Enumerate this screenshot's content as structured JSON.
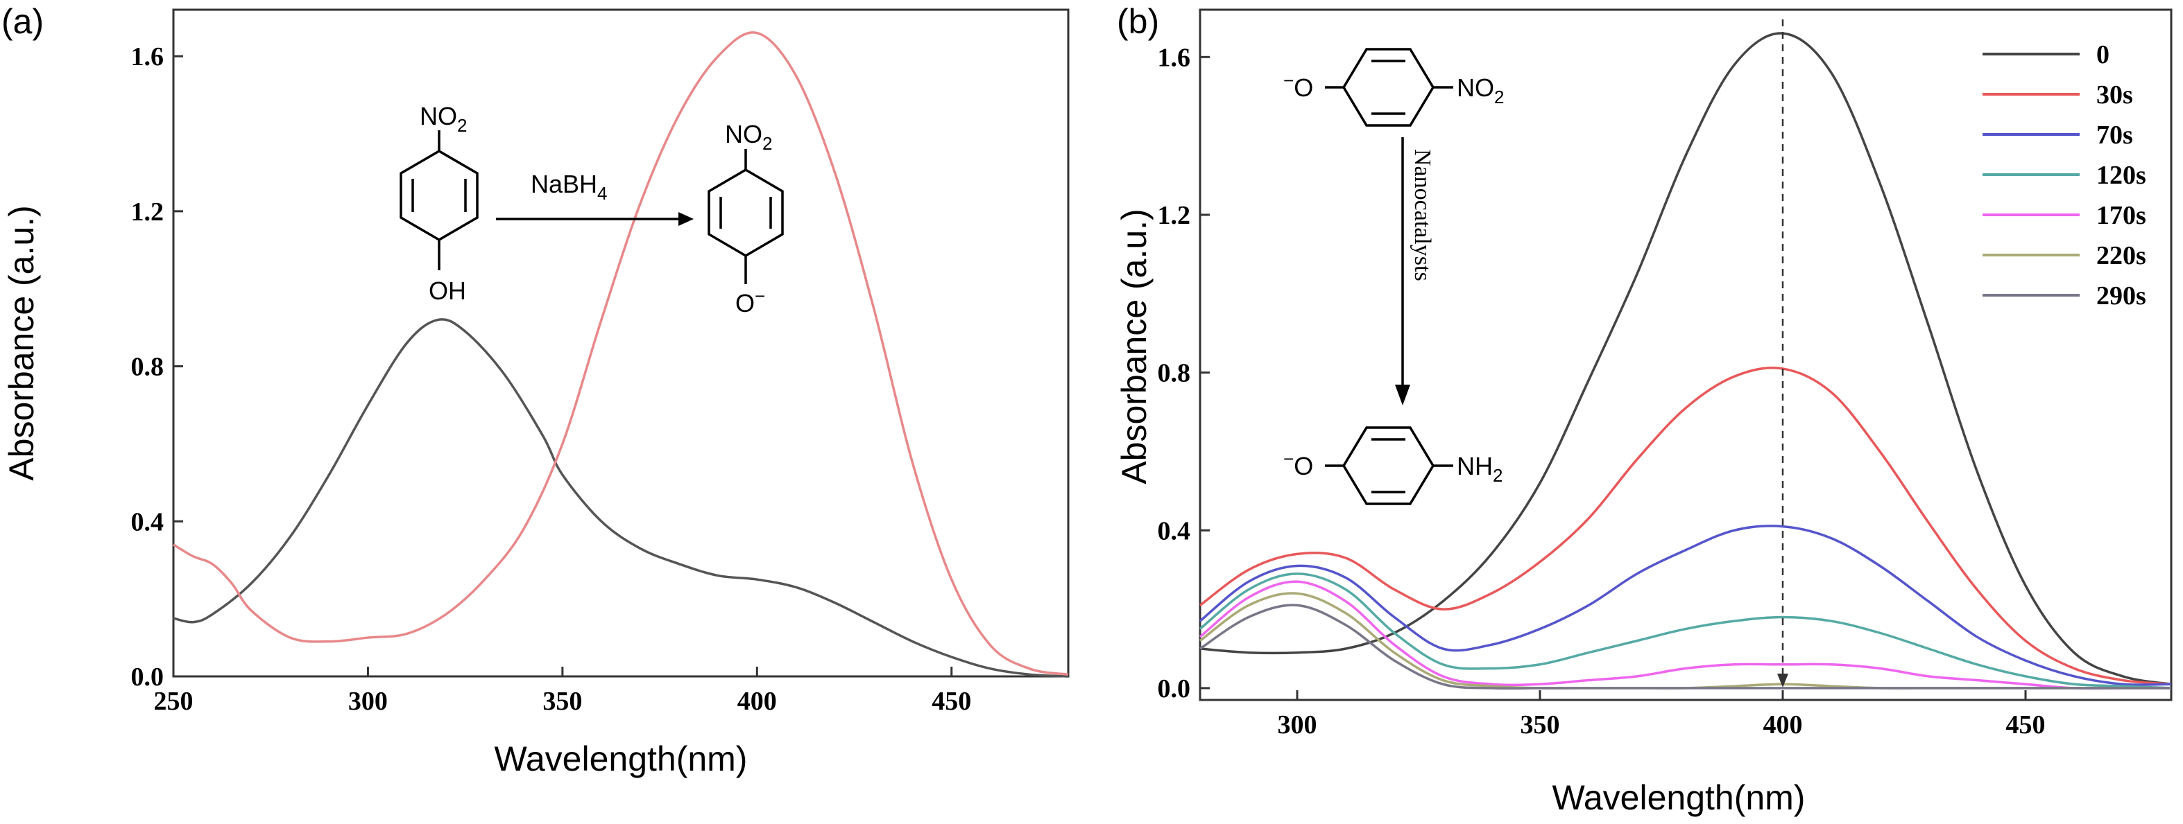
{
  "chart_data": [
    {
      "type": "line",
      "panel_label": "(a)",
      "xlabel": "Wavelength(nm)",
      "ylabel": "Absorbance (a.u.)",
      "xlim": [
        250,
        480
      ],
      "ylim": [
        0,
        1.72
      ],
      "xticks": [
        "250",
        "300",
        "350",
        "400",
        "450"
      ],
      "yticks": [
        "0.0",
        "0.4",
        "0.8",
        "1.2",
        "1.6"
      ],
      "grid": false,
      "series": [
        {
          "color": "#555555",
          "x": [
            250,
            255,
            260,
            270,
            280,
            290,
            300,
            310,
            318,
            325,
            335,
            345,
            350,
            360,
            370,
            380,
            390,
            400,
            410,
            420,
            430,
            440,
            450,
            460,
            470,
            480
          ],
          "y": [
            0.15,
            0.14,
            0.16,
            0.24,
            0.36,
            0.52,
            0.7,
            0.86,
            0.92,
            0.89,
            0.78,
            0.62,
            0.52,
            0.4,
            0.33,
            0.29,
            0.26,
            0.25,
            0.23,
            0.19,
            0.14,
            0.09,
            0.05,
            0.02,
            0.005,
            0.0
          ]
        },
        {
          "color": "#e8888a",
          "x": [
            250,
            255,
            260,
            265,
            270,
            280,
            290,
            300,
            310,
            320,
            330,
            340,
            350,
            360,
            370,
            380,
            390,
            400,
            410,
            420,
            430,
            440,
            450,
            460,
            470,
            480
          ],
          "y": [
            0.34,
            0.31,
            0.29,
            0.24,
            0.17,
            0.1,
            0.09,
            0.1,
            0.11,
            0.16,
            0.25,
            0.38,
            0.6,
            0.92,
            1.22,
            1.45,
            1.6,
            1.66,
            1.55,
            1.3,
            0.95,
            0.55,
            0.25,
            0.08,
            0.02,
            0.005
          ]
        }
      ],
      "inset": {
        "reactant_top": "NO2",
        "reactant_bottom": "OH",
        "reagent": "NaBH4",
        "product_top": "NO2",
        "product_bottom": "O-"
      }
    },
    {
      "type": "line",
      "panel_label": "(b)",
      "xlabel": "Wavelength(nm)",
      "ylabel": "Absorbance (a.u.)",
      "xlim": [
        280,
        480
      ],
      "ylim": [
        -0.03,
        1.72
      ],
      "xticks": [
        "300",
        "350",
        "400",
        "450"
      ],
      "yticks": [
        "0.0",
        "0.4",
        "0.8",
        "1.2",
        "1.6"
      ],
      "grid": false,
      "legend": "top-right",
      "reference_line_x": 400,
      "series": [
        {
          "name": "0",
          "color": "#444444",
          "x": [
            280,
            290,
            300,
            310,
            320,
            330,
            340,
            350,
            360,
            370,
            380,
            390,
            400,
            410,
            420,
            430,
            440,
            450,
            460,
            470,
            480
          ],
          "y": [
            0.1,
            0.09,
            0.09,
            0.1,
            0.14,
            0.22,
            0.34,
            0.52,
            0.78,
            1.05,
            1.35,
            1.58,
            1.66,
            1.56,
            1.28,
            0.92,
            0.55,
            0.26,
            0.09,
            0.03,
            0.01
          ]
        },
        {
          "name": "30s",
          "color": "#e8585a",
          "x": [
            280,
            290,
            300,
            310,
            320,
            330,
            340,
            350,
            360,
            370,
            380,
            390,
            400,
            410,
            420,
            430,
            440,
            450,
            460,
            470,
            480
          ],
          "y": [
            0.21,
            0.3,
            0.34,
            0.33,
            0.25,
            0.2,
            0.24,
            0.32,
            0.43,
            0.58,
            0.71,
            0.79,
            0.81,
            0.75,
            0.6,
            0.42,
            0.25,
            0.12,
            0.05,
            0.02,
            0.01
          ]
        },
        {
          "name": "70s",
          "color": "#5555cc",
          "x": [
            280,
            290,
            300,
            310,
            320,
            330,
            340,
            350,
            360,
            370,
            380,
            390,
            400,
            410,
            420,
            430,
            440,
            450,
            460,
            470,
            480
          ],
          "y": [
            0.17,
            0.27,
            0.31,
            0.28,
            0.18,
            0.1,
            0.11,
            0.15,
            0.21,
            0.29,
            0.35,
            0.4,
            0.41,
            0.38,
            0.31,
            0.22,
            0.13,
            0.07,
            0.03,
            0.01,
            0.01
          ]
        },
        {
          "name": "120s",
          "color": "#55aaa5",
          "x": [
            280,
            290,
            300,
            310,
            320,
            330,
            340,
            350,
            360,
            370,
            380,
            390,
            400,
            410,
            420,
            430,
            440,
            450,
            460,
            470,
            480
          ],
          "y": [
            0.15,
            0.25,
            0.29,
            0.25,
            0.14,
            0.06,
            0.05,
            0.06,
            0.09,
            0.12,
            0.15,
            0.17,
            0.18,
            0.17,
            0.14,
            0.1,
            0.06,
            0.03,
            0.01,
            0.005,
            0.0
          ]
        },
        {
          "name": "170s",
          "color": "#ee66ee",
          "x": [
            280,
            290,
            300,
            310,
            320,
            330,
            340,
            350,
            360,
            370,
            380,
            390,
            400,
            410,
            420,
            430,
            440,
            450,
            460,
            470,
            480
          ],
          "y": [
            0.13,
            0.23,
            0.27,
            0.22,
            0.11,
            0.03,
            0.01,
            0.01,
            0.02,
            0.03,
            0.05,
            0.06,
            0.06,
            0.06,
            0.05,
            0.03,
            0.02,
            0.01,
            0.0,
            0.0,
            0.0
          ]
        },
        {
          "name": "220s",
          "color": "#aaaa77",
          "x": [
            280,
            290,
            300,
            310,
            320,
            330,
            340,
            350,
            360,
            370,
            380,
            390,
            400,
            410,
            420,
            430,
            440,
            450,
            460,
            470,
            480
          ],
          "y": [
            0.12,
            0.21,
            0.24,
            0.19,
            0.09,
            0.02,
            0.005,
            0.0,
            0.0,
            0.0,
            0.0,
            0.005,
            0.01,
            0.005,
            0.0,
            0.0,
            0.0,
            0.0,
            0.0,
            0.0,
            0.0
          ]
        },
        {
          "name": "290s",
          "color": "#777788",
          "x": [
            280,
            290,
            300,
            310,
            320,
            330,
            340,
            350,
            360,
            370,
            380,
            390,
            400,
            410,
            420,
            430,
            440,
            450,
            460,
            470,
            480
          ],
          "y": [
            0.1,
            0.18,
            0.21,
            0.16,
            0.07,
            0.01,
            0.0,
            0.0,
            0.0,
            0.0,
            0.0,
            0.0,
            0.0,
            0.0,
            0.0,
            0.0,
            0.0,
            0.0,
            0.0,
            0.0,
            0.0
          ]
        }
      ],
      "inset": {
        "reactant_left": "-O",
        "reactant_right": "NO2",
        "arrow_label": "Nanocatalysts",
        "product_left": "-O",
        "product_right": "NH2"
      }
    }
  ]
}
